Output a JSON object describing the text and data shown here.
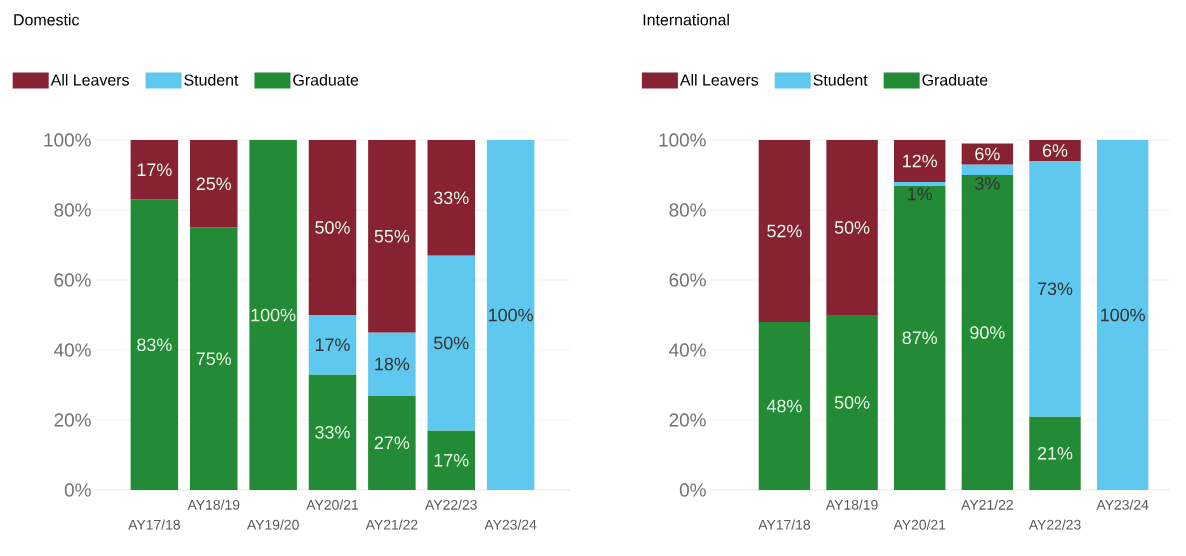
{
  "chart_data": [
    {
      "type": "bar",
      "title": "Domestic",
      "stacked": true,
      "legend": "top",
      "grid": "y",
      "categories": [
        "AY17/18",
        "AY18/19",
        "AY19/20",
        "AY20/21",
        "AY21/22",
        "AY22/23",
        "AY23/24"
      ],
      "ylim": [
        0,
        100
      ],
      "yticks": [
        {
          "value": 0,
          "label": "0%"
        },
        {
          "value": 20,
          "label": "20%"
        },
        {
          "value": 40,
          "label": "40%"
        },
        {
          "value": 60,
          "label": "60%"
        },
        {
          "value": 80,
          "label": "80%"
        },
        {
          "value": 100,
          "label": "100%"
        }
      ],
      "series": [
        {
          "name": "Graduate",
          "color": "#238a35",
          "values": [
            83,
            75,
            100,
            33,
            27,
            17,
            null
          ],
          "value_labels": [
            "83%",
            "75%",
            "100%",
            "33%",
            "27%",
            "17%",
            null
          ]
        },
        {
          "name": "Student",
          "color": "#5fc8ee",
          "values": [
            null,
            null,
            null,
            17,
            18,
            50,
            100
          ],
          "value_labels": [
            null,
            null,
            null,
            "17%",
            "18%",
            "50%",
            "100%"
          ]
        },
        {
          "name": "All Leavers",
          "color": "#862231",
          "values": [
            17,
            25,
            null,
            50,
            55,
            33,
            null
          ],
          "value_labels": [
            "17%",
            "25%",
            null,
            "50%",
            "55%",
            "33%",
            null
          ]
        }
      ]
    },
    {
      "type": "bar",
      "title": "International",
      "stacked": true,
      "legend": "top",
      "grid": "y",
      "categories": [
        "AY17/18",
        "AY18/19",
        "AY20/21",
        "AY21/22",
        "AY22/23",
        "AY23/24"
      ],
      "ylim": [
        0,
        100
      ],
      "yticks": [
        {
          "value": 0,
          "label": "0%"
        },
        {
          "value": 20,
          "label": "20%"
        },
        {
          "value": 40,
          "label": "40%"
        },
        {
          "value": 60,
          "label": "60%"
        },
        {
          "value": 80,
          "label": "80%"
        },
        {
          "value": 100,
          "label": "100%"
        }
      ],
      "series": [
        {
          "name": "Graduate",
          "color": "#238a35",
          "values": [
            48,
            50,
            87,
            90,
            21,
            null
          ],
          "value_labels": [
            "48%",
            "50%",
            "87%",
            "90%",
            "21%",
            null
          ]
        },
        {
          "name": "Student",
          "color": "#5fc8ee",
          "values": [
            null,
            null,
            1,
            3,
            73,
            100
          ],
          "value_labels": [
            null,
            null,
            "1%",
            "3%",
            "73%",
            "100%"
          ]
        },
        {
          "name": "All Leavers",
          "color": "#862231",
          "values": [
            52,
            50,
            12,
            6,
            6,
            null
          ],
          "value_labels": [
            "52%",
            "50%",
            "12%",
            "6%",
            "6%",
            null
          ]
        }
      ]
    }
  ]
}
